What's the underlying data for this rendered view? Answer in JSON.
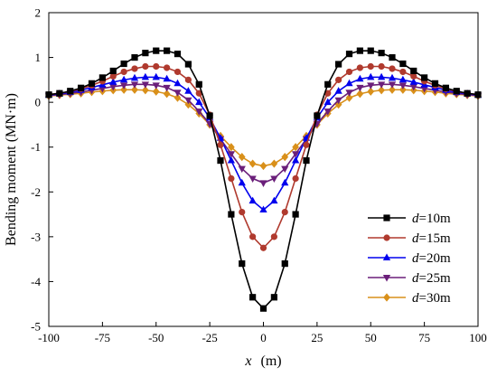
{
  "chart_data": {
    "type": "line",
    "xlabel": {
      "var": "x",
      "unit": "(m)"
    },
    "ylabel": "Bending moment (MN·m)",
    "xlim": [
      -100,
      100
    ],
    "ylim": [
      -5,
      2
    ],
    "xticks": [
      -100,
      -75,
      -50,
      -25,
      0,
      25,
      50,
      75,
      100
    ],
    "yticks": [
      -5,
      -4,
      -3,
      -2,
      -1,
      0,
      1,
      2
    ],
    "grid": false,
    "legend_position": "bottom-right",
    "legend_var": "d",
    "series": [
      {
        "name": "=10m",
        "color": "#000000",
        "marker": "square",
        "x": [
          -100,
          -95,
          -90,
          -85,
          -80,
          -75,
          -70,
          -65,
          -60,
          -55,
          -50,
          -45,
          -40,
          -35,
          -30,
          -25,
          -20,
          -15,
          -10,
          -5,
          0,
          5,
          10,
          15,
          20,
          25,
          30,
          35,
          40,
          45,
          50,
          55,
          60,
          65,
          70,
          75,
          80,
          85,
          90,
          95,
          100
        ],
        "y": [
          0.17,
          0.2,
          0.25,
          0.32,
          0.42,
          0.55,
          0.7,
          0.86,
          1.0,
          1.1,
          1.15,
          1.15,
          1.08,
          0.85,
          0.4,
          -0.3,
          -1.3,
          -2.5,
          -3.6,
          -4.35,
          -4.6,
          -4.35,
          -3.6,
          -2.5,
          -1.3,
          -0.3,
          0.4,
          0.85,
          1.08,
          1.15,
          1.15,
          1.1,
          1.0,
          0.86,
          0.7,
          0.55,
          0.42,
          0.32,
          0.25,
          0.2,
          0.17
        ]
      },
      {
        "name": "=15m",
        "color": "#b03a2e",
        "marker": "circle",
        "x": [
          -100,
          -95,
          -90,
          -85,
          -80,
          -75,
          -70,
          -65,
          -60,
          -55,
          -50,
          -45,
          -40,
          -35,
          -30,
          -25,
          -20,
          -15,
          -10,
          -5,
          0,
          5,
          10,
          15,
          20,
          25,
          30,
          35,
          40,
          45,
          50,
          55,
          60,
          65,
          70,
          75,
          80,
          85,
          90,
          95,
          100
        ],
        "y": [
          0.17,
          0.2,
          0.24,
          0.3,
          0.38,
          0.47,
          0.58,
          0.68,
          0.75,
          0.8,
          0.8,
          0.77,
          0.68,
          0.5,
          0.2,
          -0.28,
          -0.95,
          -1.7,
          -2.45,
          -3.0,
          -3.25,
          -3.0,
          -2.45,
          -1.7,
          -0.95,
          -0.28,
          0.2,
          0.5,
          0.68,
          0.77,
          0.8,
          0.8,
          0.75,
          0.68,
          0.58,
          0.47,
          0.38,
          0.3,
          0.24,
          0.2,
          0.17
        ]
      },
      {
        "name": "=20m",
        "color": "#0000ee",
        "marker": "triangle-up",
        "x": [
          -100,
          -95,
          -90,
          -85,
          -80,
          -75,
          -70,
          -65,
          -60,
          -55,
          -50,
          -45,
          -40,
          -35,
          -30,
          -25,
          -20,
          -15,
          -10,
          -5,
          0,
          5,
          10,
          15,
          20,
          25,
          30,
          35,
          40,
          45,
          50,
          55,
          60,
          65,
          70,
          75,
          80,
          85,
          90,
          95,
          100
        ],
        "y": [
          0.16,
          0.19,
          0.22,
          0.27,
          0.33,
          0.39,
          0.45,
          0.5,
          0.54,
          0.56,
          0.56,
          0.52,
          0.42,
          0.25,
          0.0,
          -0.35,
          -0.8,
          -1.3,
          -1.8,
          -2.2,
          -2.4,
          -2.2,
          -1.8,
          -1.3,
          -0.8,
          -0.35,
          0.0,
          0.25,
          0.42,
          0.52,
          0.56,
          0.56,
          0.54,
          0.5,
          0.45,
          0.39,
          0.33,
          0.27,
          0.22,
          0.19,
          0.16
        ]
      },
      {
        "name": "=25m",
        "color": "#6b1f7a",
        "marker": "triangle-down",
        "x": [
          -100,
          -95,
          -90,
          -85,
          -80,
          -75,
          -70,
          -65,
          -60,
          -55,
          -50,
          -45,
          -40,
          -35,
          -30,
          -25,
          -20,
          -15,
          -10,
          -5,
          0,
          5,
          10,
          15,
          20,
          25,
          30,
          35,
          40,
          45,
          50,
          55,
          60,
          65,
          70,
          75,
          80,
          85,
          90,
          95,
          100
        ],
        "y": [
          0.15,
          0.17,
          0.2,
          0.23,
          0.27,
          0.31,
          0.35,
          0.38,
          0.4,
          0.4,
          0.38,
          0.33,
          0.22,
          0.05,
          -0.2,
          -0.48,
          -0.82,
          -1.15,
          -1.48,
          -1.7,
          -1.8,
          -1.7,
          -1.48,
          -1.15,
          -0.82,
          -0.48,
          -0.2,
          0.05,
          0.22,
          0.33,
          0.38,
          0.4,
          0.4,
          0.38,
          0.35,
          0.31,
          0.27,
          0.23,
          0.2,
          0.17,
          0.15
        ]
      },
      {
        "name": "=30m",
        "color": "#d9901a",
        "marker": "diamond",
        "x": [
          -100,
          -95,
          -90,
          -85,
          -80,
          -75,
          -70,
          -65,
          -60,
          -55,
          -50,
          -45,
          -40,
          -35,
          -30,
          -25,
          -20,
          -15,
          -10,
          -5,
          0,
          5,
          10,
          15,
          20,
          25,
          30,
          35,
          40,
          45,
          50,
          55,
          60,
          65,
          70,
          75,
          80,
          85,
          90,
          95,
          100
        ],
        "y": [
          0.14,
          0.16,
          0.18,
          0.2,
          0.23,
          0.25,
          0.27,
          0.28,
          0.28,
          0.27,
          0.24,
          0.19,
          0.1,
          -0.05,
          -0.25,
          -0.5,
          -0.75,
          -1.0,
          -1.22,
          -1.37,
          -1.42,
          -1.37,
          -1.22,
          -1.0,
          -0.75,
          -0.5,
          -0.25,
          -0.05,
          0.1,
          0.19,
          0.24,
          0.27,
          0.28,
          0.28,
          0.27,
          0.25,
          0.23,
          0.2,
          0.18,
          0.16,
          0.14
        ]
      }
    ]
  }
}
